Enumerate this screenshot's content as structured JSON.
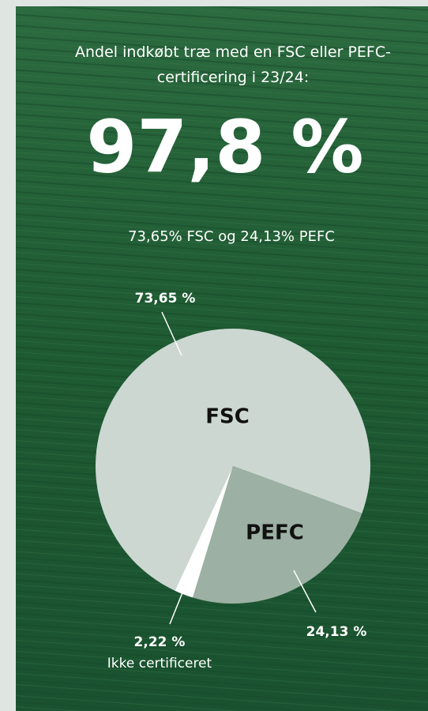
{
  "chart_data": {
    "type": "pie",
    "title": "Andel indkøbt træ med en FSC eller PEFC-certificering i 23/24:",
    "headline": "97,8 %",
    "subtitle": "73,65% FSC og 24,13% PEFC",
    "categories": [
      "FSC",
      "PEFC",
      "Ikke certificeret"
    ],
    "values": [
      73.65,
      24.13,
      2.22
    ],
    "value_labels": [
      "73,65 %",
      "24,13 %",
      "2,22 %"
    ],
    "colors": [
      "#ccd7d1",
      "#9cb0a3",
      "#ffffff"
    ]
  }
}
